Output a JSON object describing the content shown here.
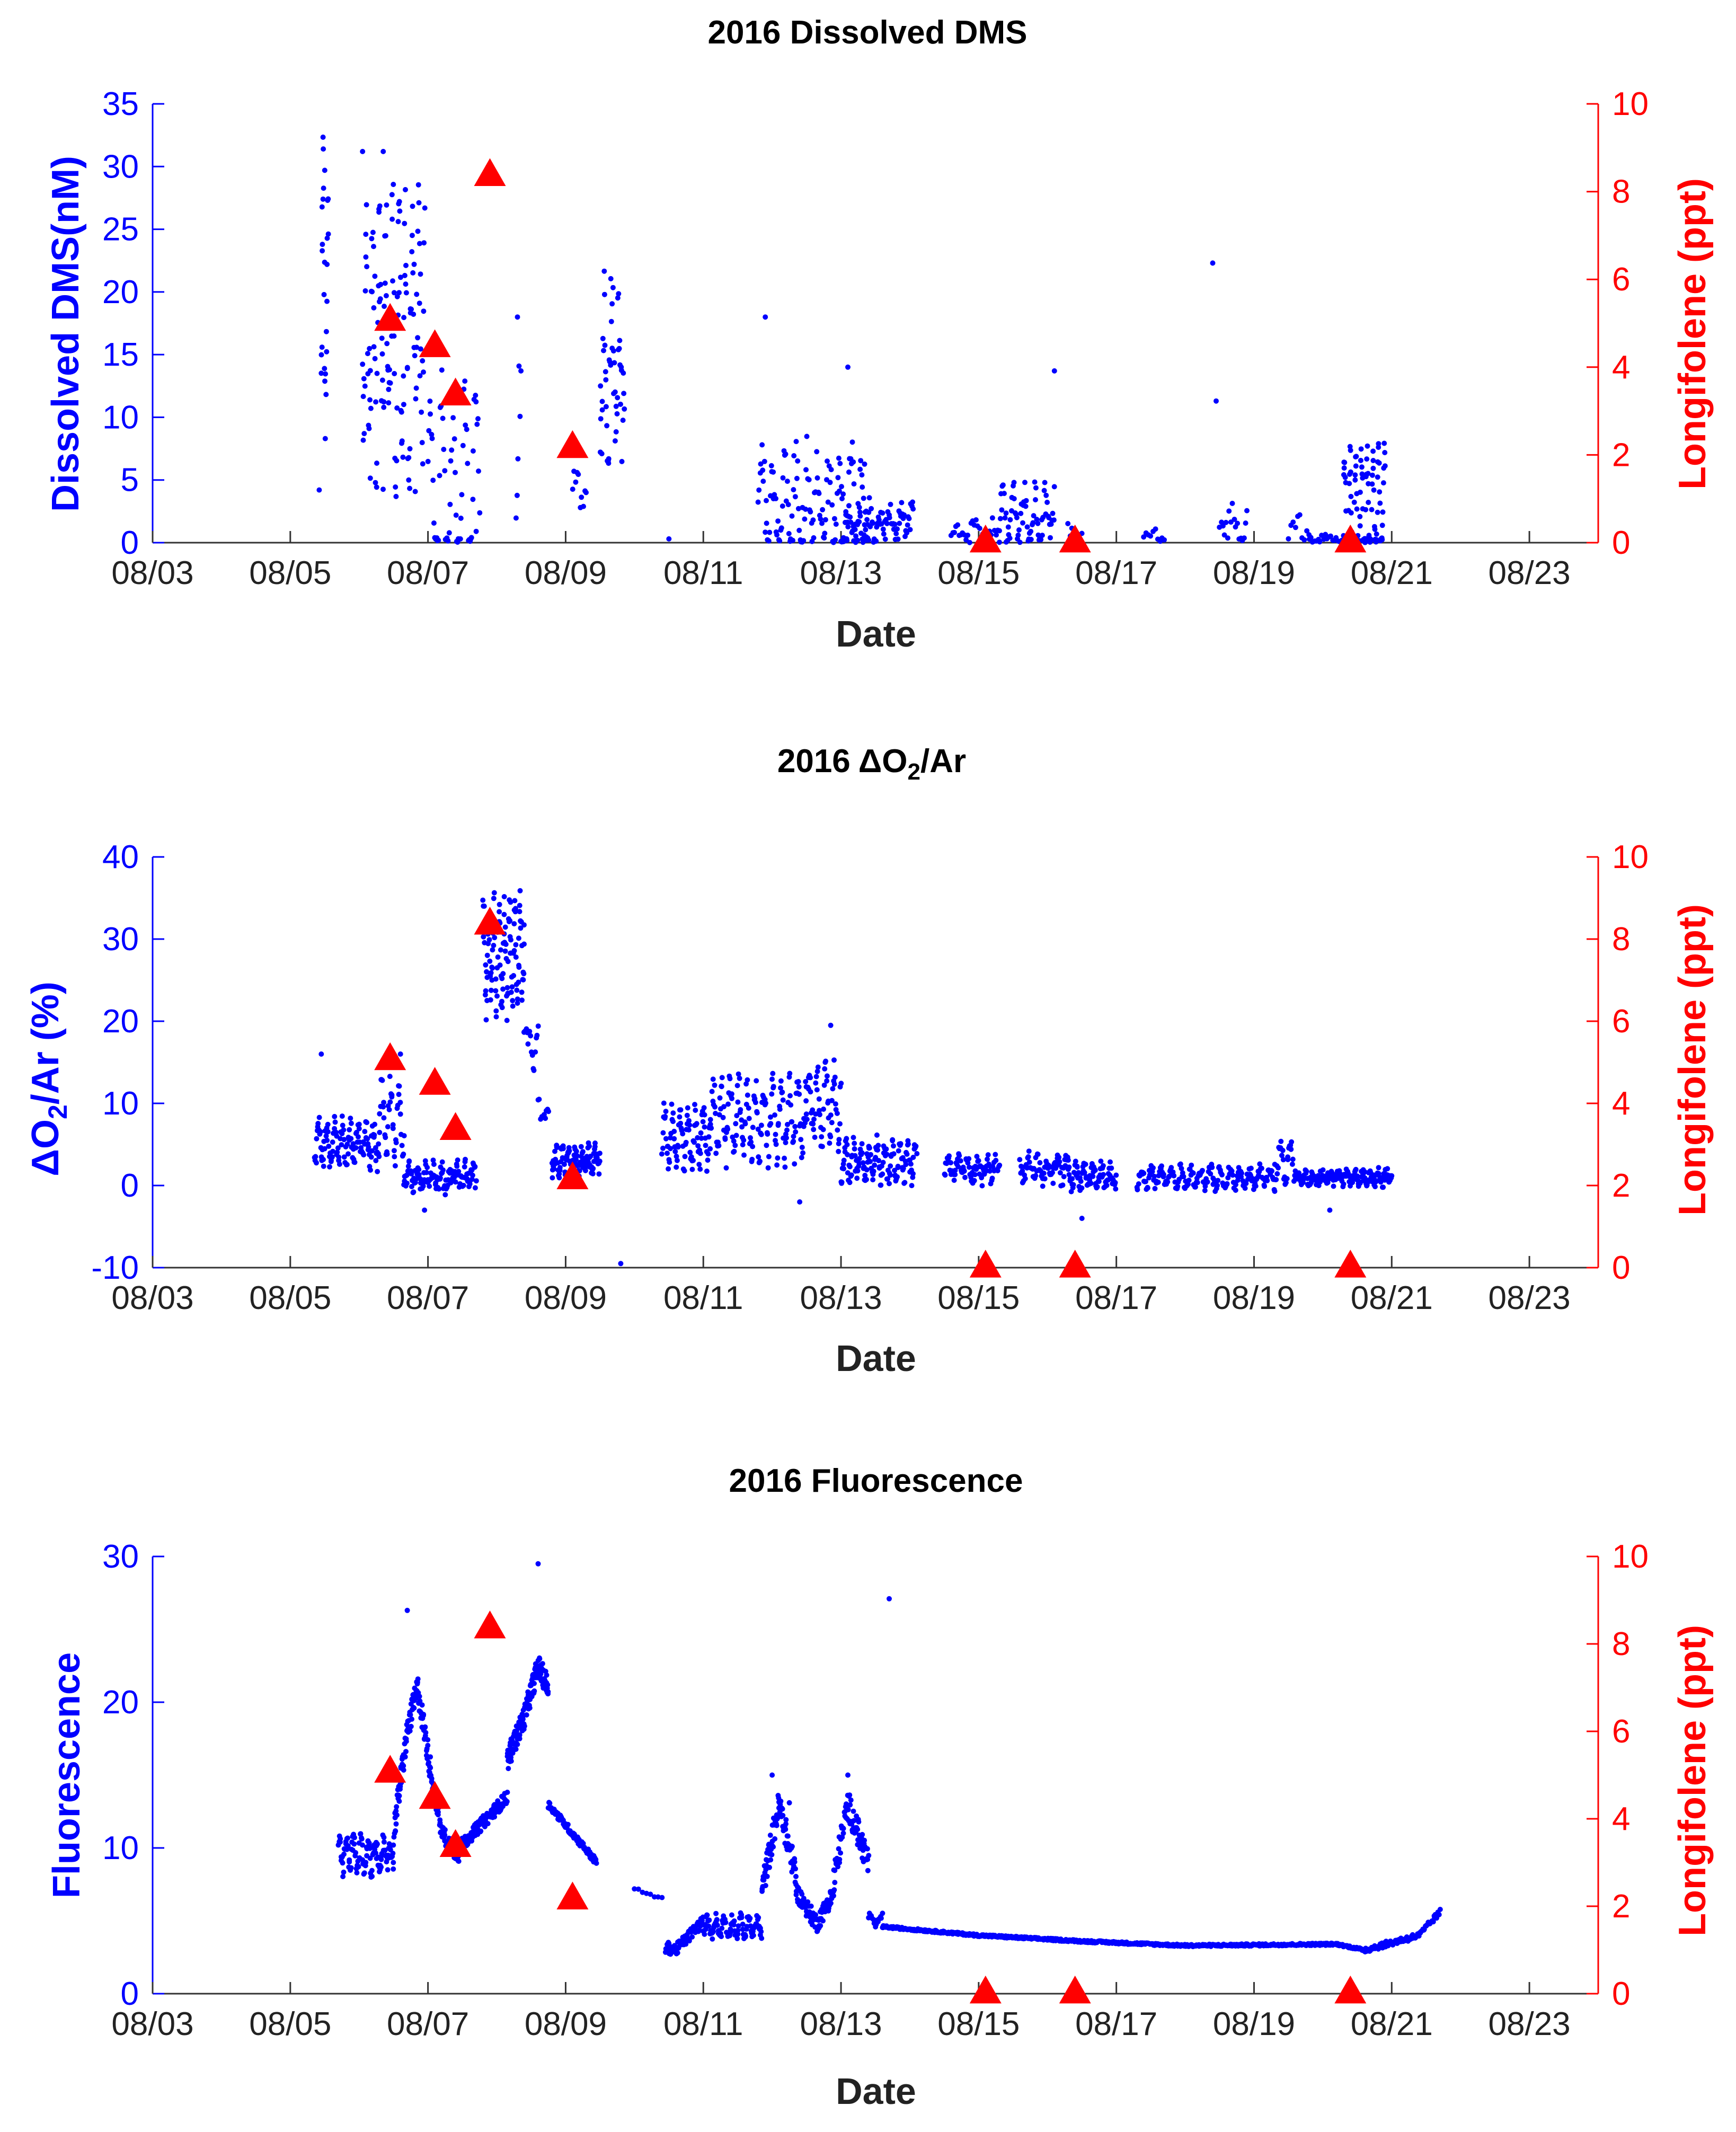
{
  "figure": {
    "x_dates": [
      "08/03",
      "08/05",
      "08/07",
      "08/09",
      "08/11",
      "08/13",
      "08/15",
      "08/17",
      "08/19",
      "08/21",
      "08/23"
    ],
    "longifolene": {
      "label": "Longifolene (ppt)",
      "color": "#ff0000",
      "marker": "triangle",
      "points": [
        [
          6.45,
          5.1
        ],
        [
          7.1,
          4.5
        ],
        [
          7.4,
          3.4
        ],
        [
          7.9,
          8.4
        ],
        [
          9.1,
          2.2
        ],
        [
          15.1,
          0.05
        ],
        [
          16.4,
          0.05
        ],
        [
          20.4,
          0.05
        ]
      ]
    }
  },
  "chart_data": [
    {
      "type": "scatter",
      "title": "2016 Dissolved DMS",
      "xlabel": "Date",
      "ylabel": "Dissolved DMS(nM)",
      "ylabel_right": "Longifolene (ppt)",
      "xlim": [
        3,
        24
      ],
      "ylim": [
        0,
        35
      ],
      "ylim_right": [
        0,
        10
      ],
      "yticks": [
        0,
        5,
        10,
        15,
        20,
        25,
        30,
        35
      ],
      "yticks_right": [
        0,
        2,
        4,
        6,
        8,
        10
      ],
      "series_color": "#0000ff",
      "series_name": "Dissolved DMS",
      "segments": [
        {
          "x0": 5.45,
          "x1": 5.55,
          "n": 25,
          "base": 20,
          "amp": 9,
          "noise": 8
        },
        {
          "x0": 6.05,
          "x1": 6.95,
          "n": 140,
          "base": 17,
          "amp": 8,
          "noise": 12
        },
        {
          "x0": 7.0,
          "x1": 7.75,
          "n": 60,
          "base": 4,
          "amp": 8,
          "noise": 5
        },
        {
          "x0": 8.28,
          "x1": 8.35,
          "n": 6,
          "base": 8,
          "amp": 6,
          "noise": 8
        },
        {
          "x0": 9.1,
          "x1": 9.3,
          "n": 10,
          "base": 4,
          "amp": 1,
          "noise": 3
        },
        {
          "x0": 9.5,
          "x1": 9.85,
          "n": 50,
          "base": 14,
          "amp": 5,
          "noise": 8
        },
        {
          "x0": 11.8,
          "x1": 13.4,
          "n": 130,
          "base": 3,
          "amp": 3,
          "noise": 5
        },
        {
          "x0": 13.0,
          "x1": 14.05,
          "n": 90,
          "base": 1.5,
          "amp": 1,
          "noise": 2.5
        },
        {
          "x0": 14.6,
          "x1": 15.3,
          "n": 30,
          "base": 0.8,
          "amp": 0.5,
          "noise": 1.5
        },
        {
          "x0": 15.3,
          "x1": 16.1,
          "n": 70,
          "base": 2,
          "amp": 1.5,
          "noise": 3
        },
        {
          "x0": 16.3,
          "x1": 16.5,
          "n": 8,
          "base": 0.8,
          "amp": 0.5,
          "noise": 1
        },
        {
          "x0": 17.4,
          "x1": 17.7,
          "n": 10,
          "base": 0.6,
          "amp": 0.3,
          "noise": 1
        },
        {
          "x0": 18.5,
          "x1": 18.9,
          "n": 18,
          "base": 1.5,
          "amp": 1,
          "noise": 2
        },
        {
          "x0": 19.5,
          "x1": 19.8,
          "n": 10,
          "base": 1,
          "amp": 1,
          "noise": 2
        },
        {
          "x0": 19.8,
          "x1": 20.3,
          "n": 20,
          "base": 0.3,
          "amp": 0.2,
          "noise": 0.5
        },
        {
          "x0": 20.3,
          "x1": 20.9,
          "n": 110,
          "base": 2,
          "amp": 5,
          "noise": 2
        }
      ],
      "outliers": [
        [
          5.42,
          4.2
        ],
        [
          5.5,
          29.7
        ],
        [
          6.05,
          31.2
        ],
        [
          6.35,
          31.2
        ],
        [
          7.7,
          0.9
        ],
        [
          8.3,
          18
        ],
        [
          10.5,
          0.3
        ],
        [
          11.9,
          18
        ],
        [
          13.1,
          14
        ],
        [
          16.1,
          13.7
        ],
        [
          18.4,
          22.3
        ],
        [
          18.45,
          11.3
        ]
      ]
    },
    {
      "type": "scatter",
      "title": "2016 ΔO2/Ar",
      "xlabel": "Date",
      "ylabel": "ΔO2/Ar (%)",
      "ylabel_right": "Longifolene (ppt)",
      "xlim": [
        3,
        24
      ],
      "ylim": [
        -10,
        40
      ],
      "ylim_right": [
        0,
        10
      ],
      "yticks": [
        -10,
        0,
        10,
        20,
        30,
        40
      ],
      "yticks_right": [
        0,
        2,
        4,
        6,
        8,
        10
      ],
      "series_color": "#0000ff",
      "series_name": "ΔO2/Ar",
      "segments": [
        {
          "x0": 5.35,
          "x1": 6.3,
          "n": 120,
          "base": 5,
          "amp": 2,
          "noise": 3
        },
        {
          "x0": 6.3,
          "x1": 6.65,
          "n": 40,
          "base": 8,
          "amp": 4,
          "noise": 4
        },
        {
          "x0": 6.65,
          "x1": 7.7,
          "n": 130,
          "base": 1,
          "amp": 1,
          "noise": 2.5
        },
        {
          "x0": 7.8,
          "x1": 8.4,
          "n": 120,
          "base": 28,
          "amp": 5,
          "noise": 6
        },
        {
          "x0": 8.4,
          "x1": 8.6,
          "n": 15,
          "base": 17,
          "amp": 2,
          "noise": 3
        },
        {
          "x0": 8.6,
          "x1": 8.75,
          "n": 10,
          "base": 9,
          "amp": 1,
          "noise": 2
        },
        {
          "x0": 8.8,
          "x1": 9.5,
          "n": 110,
          "base": 3,
          "amp": 1,
          "noise": 2.5
        },
        {
          "x0": 10.4,
          "x1": 11.1,
          "n": 90,
          "base": 6,
          "amp": 3,
          "noise": 3
        },
        {
          "x0": 11.1,
          "x1": 12.5,
          "n": 160,
          "base": 8,
          "amp": 4,
          "noise": 4
        },
        {
          "x0": 12.5,
          "x1": 13.0,
          "n": 60,
          "base": 10,
          "amp": 4,
          "noise": 4
        },
        {
          "x0": 13.0,
          "x1": 14.1,
          "n": 140,
          "base": 3,
          "amp": 2,
          "noise": 2.5
        },
        {
          "x0": 14.5,
          "x1": 15.3,
          "n": 80,
          "base": 2,
          "amp": 1,
          "noise": 2.5
        },
        {
          "x0": 15.6,
          "x1": 16.3,
          "n": 70,
          "base": 2,
          "amp": 1,
          "noise": 2.5
        },
        {
          "x0": 16.3,
          "x1": 17.0,
          "n": 80,
          "base": 1,
          "amp": 1,
          "noise": 2
        },
        {
          "x0": 17.3,
          "x1": 19.3,
          "n": 190,
          "base": 1,
          "amp": 1,
          "noise": 1.5
        },
        {
          "x0": 19.3,
          "x1": 19.6,
          "n": 30,
          "base": 3,
          "amp": 2,
          "noise": 2.5
        },
        {
          "x0": 19.6,
          "x1": 20.2,
          "n": 70,
          "base": 1,
          "amp": 0.5,
          "noise": 1.5
        },
        {
          "x0": 20.2,
          "x1": 21.0,
          "n": 100,
          "base": 1,
          "amp": 0.5,
          "noise": 1.5
        }
      ],
      "outliers": [
        [
          5.45,
          16
        ],
        [
          6.6,
          16
        ],
        [
          6.95,
          -3
        ],
        [
          8.2,
          34.5
        ],
        [
          9.8,
          -9.5
        ],
        [
          12.85,
          19.5
        ],
        [
          12.4,
          -2
        ],
        [
          16.5,
          -4
        ],
        [
          20.1,
          -3
        ]
      ]
    },
    {
      "type": "scatter",
      "title": "2016 Fluorescence",
      "xlabel": "Date",
      "ylabel": "Fluorescence",
      "ylabel_right": "Longifolene (ppt)",
      "xlim": [
        3,
        24
      ],
      "ylim": [
        0,
        30
      ],
      "ylim_right": [
        0,
        10
      ],
      "yticks": [
        0,
        10,
        20,
        30
      ],
      "yticks_right": [
        0,
        2,
        4,
        6,
        8,
        10
      ],
      "series_color": "#0000ff",
      "series_name": "Fluorescence",
      "segments": [
        {
          "x0": 5.7,
          "x1": 6.5,
          "n": 110,
          "base": 9.5,
          "amp": 0.8,
          "noise": 1.6
        },
        {
          "x0": 6.5,
          "x1": 7.05,
          "n": 110,
          "curve": [
            [
              6.5,
              11
            ],
            [
              6.7,
              18
            ],
            [
              6.85,
              21
            ],
            [
              7.05,
              15
            ]
          ],
          "noise": 1.8
        },
        {
          "x0": 7.05,
          "x1": 7.45,
          "n": 60,
          "curve": [
            [
              7.05,
              15
            ],
            [
              7.2,
              11
            ],
            [
              7.45,
              9.5
            ]
          ],
          "noise": 1.2
        },
        {
          "x0": 7.45,
          "x1": 8.15,
          "n": 110,
          "curve": [
            [
              7.45,
              10
            ],
            [
              8.15,
              13.5
            ]
          ],
          "noise": 0.9
        },
        {
          "x0": 8.15,
          "x1": 8.75,
          "n": 130,
          "curve": [
            [
              8.15,
              16
            ],
            [
              8.4,
              19
            ],
            [
              8.6,
              22.5
            ],
            [
              8.75,
              21
            ]
          ],
          "noise": 1.6
        },
        {
          "x0": 8.75,
          "x1": 9.45,
          "n": 90,
          "curve": [
            [
              8.75,
              13
            ],
            [
              9.45,
              9
            ]
          ],
          "noise": 0.5
        },
        {
          "x0": 10.0,
          "x1": 10.4,
          "n": 8,
          "curve": [
            [
              10.0,
              7.2
            ],
            [
              10.4,
              6.5
            ]
          ],
          "noise": 0.2
        },
        {
          "x0": 10.45,
          "x1": 11.0,
          "n": 70,
          "curve": [
            [
              10.45,
              3.2
            ],
            [
              10.6,
              3
            ],
            [
              11.0,
              5
            ]
          ],
          "noise": 0.8
        },
        {
          "x0": 11.0,
          "x1": 11.85,
          "n": 100,
          "base": 4.6,
          "amp": 0.6,
          "noise": 0.7
        },
        {
          "x0": 11.85,
          "x1": 12.35,
          "n": 90,
          "curve": [
            [
              11.85,
              7
            ],
            [
              12.1,
              13
            ],
            [
              12.35,
              8
            ]
          ],
          "noise": 2
        },
        {
          "x0": 12.35,
          "x1": 12.9,
          "n": 90,
          "curve": [
            [
              12.35,
              7
            ],
            [
              12.65,
              4.8
            ],
            [
              12.9,
              7
            ]
          ],
          "noise": 1.2
        },
        {
          "x0": 12.9,
          "x1": 13.4,
          "n": 80,
          "curve": [
            [
              12.9,
              8
            ],
            [
              13.1,
              13
            ],
            [
              13.4,
              9
            ]
          ],
          "noise": 2
        },
        {
          "x0": 13.4,
          "x1": 13.6,
          "n": 15,
          "base": 5,
          "amp": 0.3,
          "noise": 0.5
        },
        {
          "x0": 13.6,
          "x1": 20.6,
          "n": 700,
          "curve": [
            [
              13.6,
              4.6
            ],
            [
              15,
              4
            ],
            [
              16.5,
              3.6
            ],
            [
              18,
              3.3
            ],
            [
              20.2,
              3.4
            ],
            [
              20.6,
              3.0
            ]
          ],
          "noise": 0.15
        },
        {
          "x0": 20.6,
          "x1": 21.7,
          "n": 90,
          "curve": [
            [
              20.6,
              3
            ],
            [
              21.4,
              4
            ],
            [
              21.7,
              5.6
            ]
          ],
          "noise": 0.4
        }
      ],
      "outliers": [
        [
          6.7,
          26.3
        ],
        [
          8.6,
          29.5
        ],
        [
          13.7,
          27.1
        ],
        [
          12.25,
          13.1
        ],
        [
          12.0,
          15
        ],
        [
          13.1,
          15
        ]
      ]
    }
  ]
}
